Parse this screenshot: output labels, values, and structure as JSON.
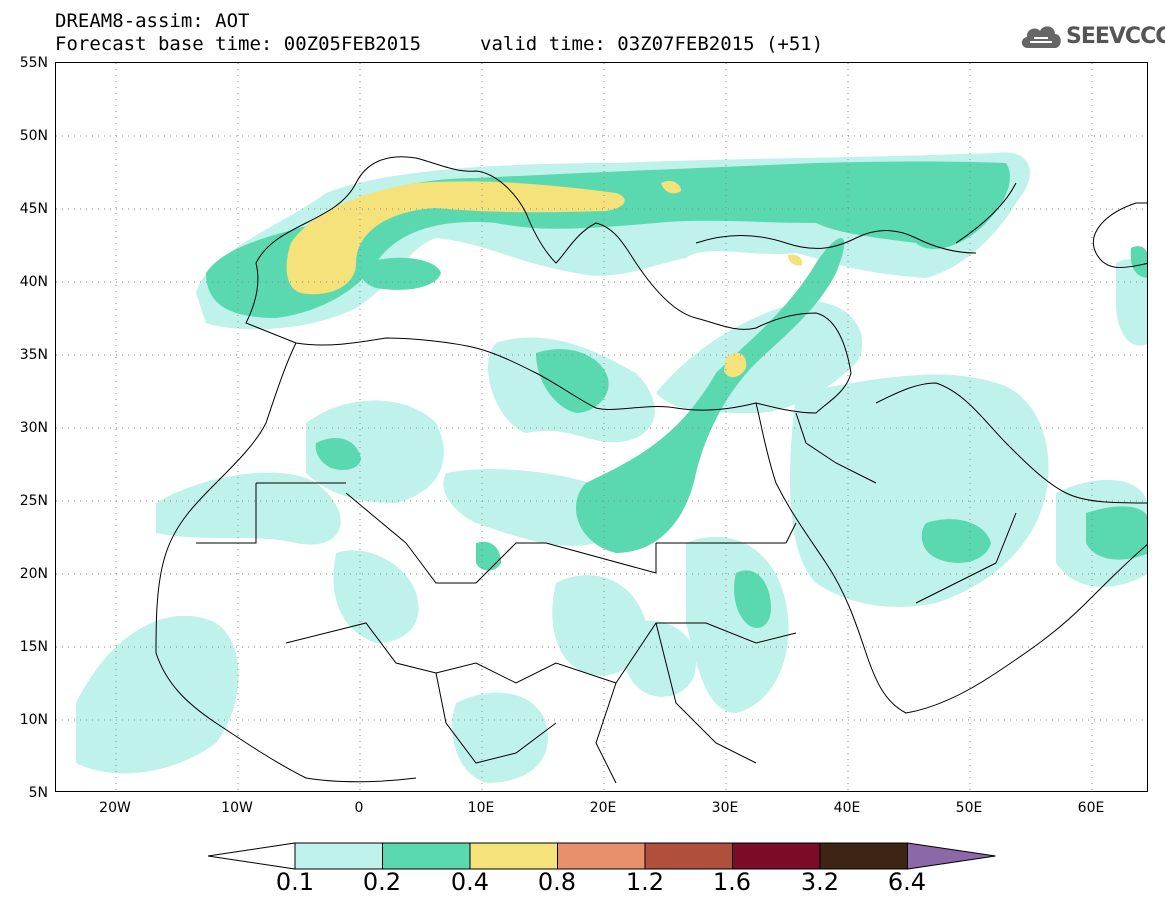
{
  "header": {
    "title_line1": "DREAM8-assim: AOT",
    "title_line2_base": "Forecast base time: 00Z05FEB2015",
    "title_line2_valid": "valid time: 03Z07FEB2015 (+51)"
  },
  "logo": {
    "text": "SEEVCCC",
    "icon": "cloud-icon"
  },
  "map": {
    "lat_labels": [
      "55N",
      "50N",
      "45N",
      "40N",
      "35N",
      "30N",
      "25N",
      "20N",
      "15N",
      "10N",
      "5N"
    ],
    "lon_labels": [
      "20W",
      "10W",
      "0",
      "10E",
      "20E",
      "30E",
      "40E",
      "50E",
      "60E"
    ],
    "gridlines": "dotted",
    "colors": {
      "land_border": "#000000",
      "aot_0_1": "#bff2ea",
      "aot_0_2": "#5ad9b0",
      "aot_0_4": "#f5e27a",
      "aot_0_8": "#e8906b",
      "aot_1_2": "#b0503c",
      "aot_1_6": "#7b0c28",
      "aot_3_2": "#3e2414",
      "aot_6_4": "#8c68a8"
    }
  },
  "colorbar": {
    "labels": [
      "0.1",
      "0.2",
      "0.4",
      "0.8",
      "1.2",
      "1.6",
      "3.2",
      "6.4"
    ],
    "colors": [
      "#bff2ea",
      "#5ad9b0",
      "#f5e27a",
      "#e8906b",
      "#b0503c",
      "#7b0c28",
      "#3e2414"
    ],
    "under_color": "#ffffff",
    "over_color": "#8c68a8"
  }
}
